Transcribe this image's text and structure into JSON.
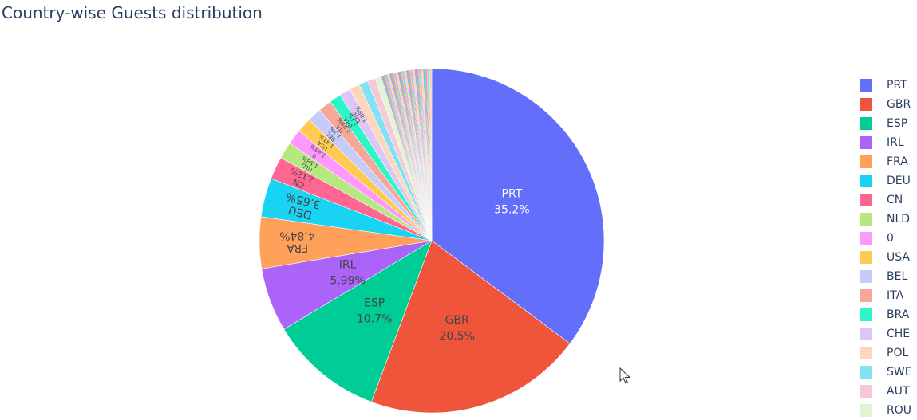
{
  "chart_data": {
    "type": "pie",
    "title": "Country-wise Guests distribution",
    "slices": [
      {
        "label": "PRT",
        "percent": 35.2,
        "text": "35.2%",
        "color": "#636efa"
      },
      {
        "label": "GBR",
        "percent": 20.5,
        "text": "20.5%",
        "color": "#EF553B"
      },
      {
        "label": "ESP",
        "percent": 10.7,
        "text": "10.7%",
        "color": "#00cc96"
      },
      {
        "label": "IRL",
        "percent": 5.99,
        "text": "5.99%",
        "color": "#ab63fa"
      },
      {
        "label": "FRA",
        "percent": 4.84,
        "text": "4.84%",
        "color": "#FFA15A"
      },
      {
        "label": "DEU",
        "percent": 3.65,
        "text": "3.65%",
        "color": "#19d3f3"
      },
      {
        "label": "CN",
        "percent": 2.12,
        "text": "2.12%",
        "color": "#FF6692"
      },
      {
        "label": "NLD",
        "percent": 1.58,
        "text": "1.58%",
        "color": "#B6E880"
      },
      {
        "label": "0",
        "percent": 1.43,
        "text": "1.43%",
        "color": "#FF97FF"
      },
      {
        "label": "USA",
        "percent": 1.41,
        "text": "1.41%",
        "color": "#FECB52"
      },
      {
        "label": "BEL",
        "percent": 1.3,
        "text": "1.3%",
        "color": "#c6cbfa"
      },
      {
        "label": "ITA",
        "percent": 1.25,
        "text": "1.25%",
        "color": "#f5a898"
      },
      {
        "label": "BRA",
        "percent": 1.1,
        "text": "1.1%",
        "color": "#2ef5c7"
      },
      {
        "label": "CHE",
        "percent": 1.05,
        "text": "1.05%",
        "color": "#dcc5f7"
      },
      {
        "label": "POL",
        "percent": 0.95,
        "text": "0.95%",
        "color": "#fcd7bd"
      },
      {
        "label": "SWE",
        "percent": 0.85,
        "text": "0.85%",
        "color": "#83e2f2"
      },
      {
        "label": "AUT",
        "percent": 0.75,
        "text": "0.75%",
        "color": "#f7c9d6"
      },
      {
        "label": "ROU",
        "percent": 0.6,
        "text": "0.6%",
        "color": "#e2f5d3"
      }
    ],
    "legend_position": "right"
  }
}
